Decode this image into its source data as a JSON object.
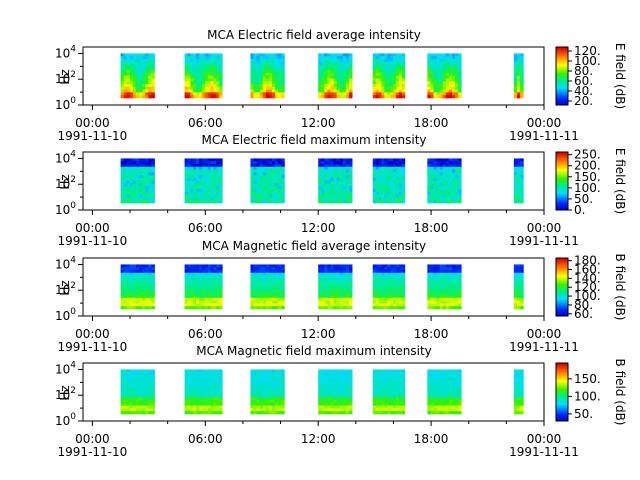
{
  "chart_data": [
    {
      "type": "heatmap",
      "title": "MCA  Electric field average intensity",
      "ylabel": "Hz",
      "colorbar_label": "E field (dB)",
      "colorbar_ticks": [
        "120.",
        "100.",
        "80.",
        "60.",
        "40.",
        "20."
      ],
      "colorbar_range": [
        12,
        128
      ],
      "y_ticks": [
        "10^4",
        "10^2",
        "10^0"
      ],
      "x_ticks": [
        "00:00",
        "06:00",
        "12:00",
        "18:00",
        "00:00"
      ],
      "x_start_date": "1991-11-10",
      "x_end_date": "1991-11-11",
      "x_range_hours": [
        -0.5,
        24
      ],
      "y_range_log10": [
        0,
        4.5
      ],
      "pattern": "avg_e",
      "passes_hours": [
        [
          1.5,
          3.3
        ],
        [
          4.9,
          6.9
        ],
        [
          8.4,
          10.2
        ],
        [
          12.0,
          13.8
        ],
        [
          14.9,
          16.6
        ],
        [
          17.8,
          19.6
        ],
        [
          22.4,
          22.9
        ]
      ]
    },
    {
      "type": "heatmap",
      "title": "MCA  Electric field maximum intensity",
      "ylabel": "Hz",
      "colorbar_label": "E field (dB)",
      "colorbar_ticks": [
        "250.",
        "200.",
        "150.",
        "100.",
        "50.",
        "0."
      ],
      "colorbar_range": [
        0,
        262
      ],
      "y_ticks": [
        "10^4",
        "10^2",
        "10^0"
      ],
      "x_ticks": [
        "00:00",
        "06:00",
        "12:00",
        "18:00",
        "00:00"
      ],
      "x_start_date": "1991-11-10",
      "x_end_date": "1991-11-11",
      "x_range_hours": [
        -0.5,
        24
      ],
      "y_range_log10": [
        0,
        4.5
      ],
      "pattern": "max_e",
      "passes_hours": [
        [
          1.5,
          3.3
        ],
        [
          4.9,
          6.9
        ],
        [
          8.4,
          10.2
        ],
        [
          12.0,
          13.8
        ],
        [
          14.9,
          16.6
        ],
        [
          17.8,
          19.6
        ],
        [
          22.4,
          22.9
        ]
      ]
    },
    {
      "type": "heatmap",
      "title": "MCA  Magnetic field average intensity",
      "ylabel": "Hz",
      "colorbar_label": "B field (dB)",
      "colorbar_ticks": [
        "180.",
        "160.",
        "140.",
        "120.",
        "100.",
        "80.",
        "60."
      ],
      "colorbar_range": [
        55,
        186
      ],
      "y_ticks": [
        "10^4",
        "10^2",
        "10^0"
      ],
      "x_ticks": [
        "00:00",
        "06:00",
        "12:00",
        "18:00",
        "00:00"
      ],
      "x_start_date": "1991-11-10",
      "x_end_date": "1991-11-11",
      "x_range_hours": [
        -0.5,
        24
      ],
      "y_range_log10": [
        0,
        4.5
      ],
      "pattern": "avg_b",
      "passes_hours": [
        [
          1.5,
          3.3
        ],
        [
          4.9,
          6.9
        ],
        [
          8.4,
          10.2
        ],
        [
          12.0,
          13.8
        ],
        [
          14.9,
          16.6
        ],
        [
          17.8,
          19.6
        ],
        [
          22.4,
          22.9
        ]
      ]
    },
    {
      "type": "heatmap",
      "title": "MCA  Magnetic field maximum intensity",
      "ylabel": "Hz",
      "colorbar_label": "B field (dB)",
      "colorbar_ticks": [
        "150.",
        "100.",
        "50."
      ],
      "colorbar_range": [
        30,
        195
      ],
      "y_ticks": [
        "10^4",
        "10^2",
        "10^0"
      ],
      "x_ticks": [
        "00:00",
        "06:00",
        "12:00",
        "18:00",
        "00:00"
      ],
      "x_start_date": "1991-11-10",
      "x_end_date": "1991-11-11",
      "x_range_hours": [
        -0.5,
        24
      ],
      "y_range_log10": [
        0,
        4.5
      ],
      "pattern": "max_b",
      "passes_hours": [
        [
          1.5,
          3.3
        ],
        [
          4.9,
          6.9
        ],
        [
          8.4,
          10.2
        ],
        [
          12.0,
          13.8
        ],
        [
          14.9,
          16.6
        ],
        [
          17.8,
          19.6
        ],
        [
          22.4,
          22.9
        ]
      ]
    }
  ]
}
